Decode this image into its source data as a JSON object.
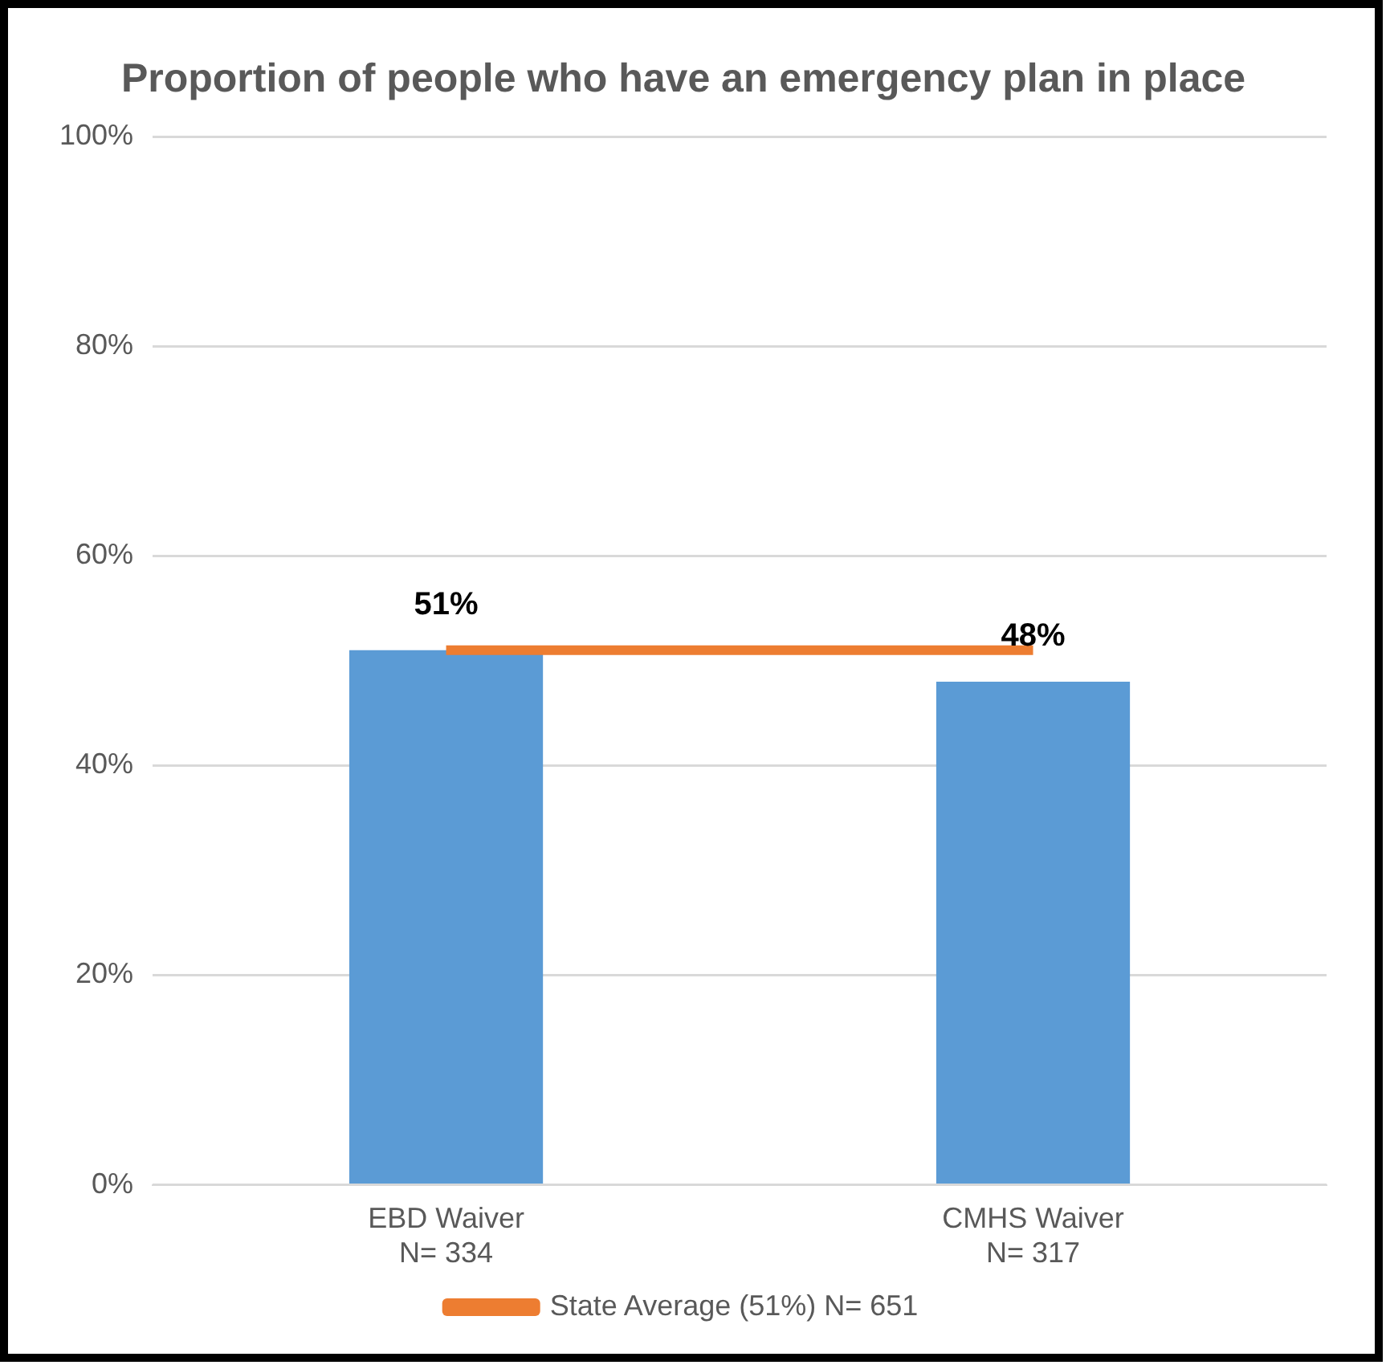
{
  "chart_data": {
    "type": "bar",
    "title": "Proportion of people who have an emergency plan in place",
    "categories": [
      "EBD Waiver\nN= 334",
      "CMHS Waiver\nN= 317"
    ],
    "series": [
      {
        "color": "#5b9bd5",
        "values": [
          51,
          48
        ],
        "value_labels": [
          "51%",
          "48%"
        ]
      },
      {
        "type": "line",
        "name": "State Average (51%) N= 651",
        "color": "#ed7d31",
        "values": [
          51,
          51
        ]
      }
    ],
    "ylim": [
      0,
      100
    ],
    "yticks": [
      {
        "value": 0,
        "label": "0%"
      },
      {
        "value": 20,
        "label": "20%"
      },
      {
        "value": 40,
        "label": "40%"
      },
      {
        "value": 60,
        "label": "60%"
      },
      {
        "value": 80,
        "label": "80%"
      },
      {
        "value": 100,
        "label": "100%"
      }
    ],
    "grid": "y",
    "legend": "bottom",
    "marker": "none"
  }
}
